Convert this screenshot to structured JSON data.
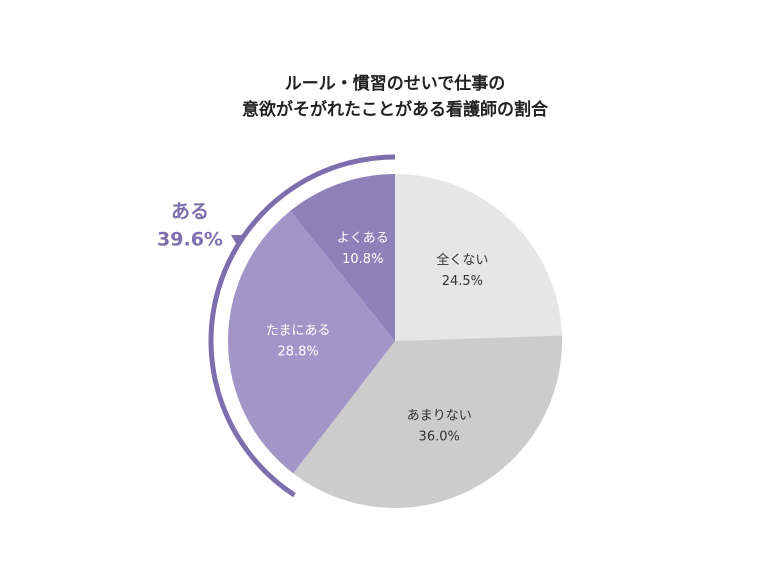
{
  "chart_data": {
    "type": "pie",
    "title": [
      "ルール・慣習のせいで仕事の",
      "意欲がそがれたことがある看護師の割合"
    ],
    "categories": [
      "全くない",
      "あまりない",
      "たまにある",
      "よくある"
    ],
    "values": [
      24.5,
      36.0,
      28.8,
      10.8
    ],
    "value_labels": [
      "24.5%",
      "36.0%",
      "28.8%",
      "10.8%"
    ],
    "colors": [
      "#e6e6e6",
      "#cccccc",
      "#a196c7",
      "#8e80b9"
    ],
    "annotation": {
      "text": "ある",
      "value": 39.6,
      "value_label": "39.6%",
      "color": "#7d6fad"
    }
  }
}
